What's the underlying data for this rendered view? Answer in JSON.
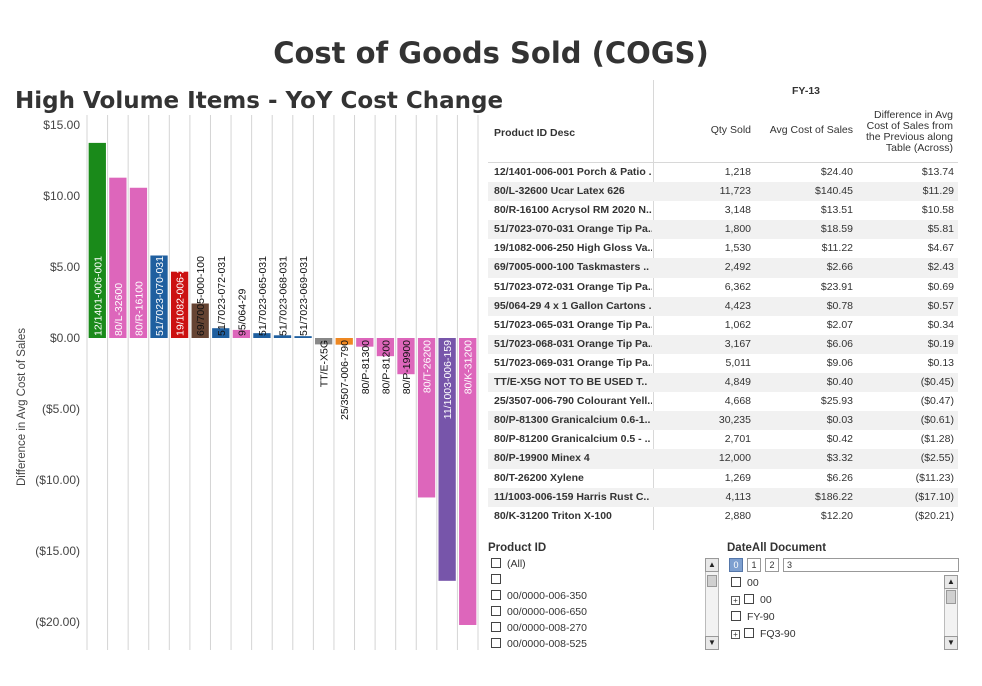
{
  "dashboard": {
    "title": "Cost of Goods Sold (COGS)",
    "subtitle": "High Volume Items - YoY Cost Change"
  },
  "chart_data": {
    "type": "bar",
    "ylabel": "Difference in Avg Cost of Sales",
    "ylim": [
      -21.5,
      15
    ],
    "yticks": [
      15,
      10,
      5,
      0,
      -5,
      -10,
      -15,
      -20
    ],
    "ytick_labels": [
      "$15.00",
      "$10.00",
      "$5.00",
      "$0.00",
      "($5.00)",
      "($10.00)",
      "($15.00)",
      "($20.00)"
    ],
    "grid": "vertical column separators",
    "categories": [
      "12/1401-006-001",
      "80/L-32600",
      "80/R-16100",
      "51/7023-070-031",
      "19/1082-006-250",
      "69/7005-000-100",
      "51/7023-072-031",
      "95/064-29",
      "51/7023-065-031",
      "51/7023-068-031",
      "51/7023-069-031",
      "TT/E-X5G",
      "25/3507-006-790",
      "80/P-81300",
      "80/P-81200",
      "80/P-19900",
      "80/T-26200",
      "11/1003-006-159",
      "80/K-31200"
    ],
    "values": [
      13.74,
      11.29,
      10.58,
      5.81,
      4.67,
      2.43,
      0.69,
      0.57,
      0.34,
      0.19,
      0.13,
      -0.45,
      -0.47,
      -0.61,
      -1.28,
      -2.55,
      -11.23,
      -17.1,
      -20.21
    ],
    "colors": [
      "#1a8a1a",
      "#dd66bb",
      "#dd66bb",
      "#1f5f9f",
      "#cc1111",
      "#664433",
      "#1f5f9f",
      "#dd66bb",
      "#1f5f9f",
      "#1f5f9f",
      "#1f5f9f",
      "#888888",
      "#ee8822",
      "#dd66bb",
      "#dd66bb",
      "#dd66bb",
      "#dd66bb",
      "#7755aa",
      "#dd66bb"
    ]
  },
  "table": {
    "header_group": "FY-13",
    "col_product": "Product ID Desc",
    "col_qty": "Qty Sold",
    "col_avg": "Avg Cost of Sales",
    "col_diff": "Difference in Avg Cost of Sales from the Previous along Table (Across)",
    "rows": [
      {
        "product": "12/1401-006-001  Porch & Patio ..",
        "qty": "1,218",
        "avg": "$24.40",
        "diff": "$13.74"
      },
      {
        "product": "80/L-32600  Ucar Latex 626",
        "qty": "11,723",
        "avg": "$140.45",
        "diff": "$11.29"
      },
      {
        "product": "80/R-16100  Acrysol RM 2020 N..",
        "qty": "3,148",
        "avg": "$13.51",
        "diff": "$10.58"
      },
      {
        "product": "51/7023-070-031  Orange Tip Pa..",
        "qty": "1,800",
        "avg": "$18.59",
        "diff": "$5.81"
      },
      {
        "product": "19/1082-006-250  High Gloss Va..",
        "qty": "1,530",
        "avg": "$11.22",
        "diff": "$4.67"
      },
      {
        "product": "69/7005-000-100  Taskmasters ..",
        "qty": "2,492",
        "avg": "$2.66",
        "diff": "$2.43"
      },
      {
        "product": "51/7023-072-031  Orange Tip Pa..",
        "qty": "6,362",
        "avg": "$23.91",
        "diff": "$0.69"
      },
      {
        "product": "95/064-29  4 x 1 Gallon Cartons ..",
        "qty": "4,423",
        "avg": "$0.78",
        "diff": "$0.57"
      },
      {
        "product": "51/7023-065-031  Orange Tip Pa..",
        "qty": "1,062",
        "avg": "$2.07",
        "diff": "$0.34"
      },
      {
        "product": "51/7023-068-031  Orange Tip Pa..",
        "qty": "3,167",
        "avg": "$6.06",
        "diff": "$0.19"
      },
      {
        "product": "51/7023-069-031  Orange Tip Pa..",
        "qty": "5,011",
        "avg": "$9.06",
        "diff": "$0.13"
      },
      {
        "product": "TT/E-X5G  NOT TO BE USED  T..",
        "qty": "4,849",
        "avg": "$0.40",
        "diff": "($0.45)"
      },
      {
        "product": "25/3507-006-790  Colourant Yell..",
        "qty": "4,668",
        "avg": "$25.93",
        "diff": "($0.47)"
      },
      {
        "product": "80/P-81300  Granicalcium 0.6-1..",
        "qty": "30,235",
        "avg": "$0.03",
        "diff": "($0.61)"
      },
      {
        "product": "80/P-81200  Granicalcium 0.5 - ..",
        "qty": "2,701",
        "avg": "$0.42",
        "diff": "($1.28)"
      },
      {
        "product": "80/P-19900  Minex 4",
        "qty": "12,000",
        "avg": "$3.32",
        "diff": "($2.55)"
      },
      {
        "product": "80/T-26200  Xylene",
        "qty": "1,269",
        "avg": "$6.26",
        "diff": "($11.23)"
      },
      {
        "product": "11/1003-006-159  Harris Rust C..",
        "qty": "4,113",
        "avg": "$186.22",
        "diff": "($17.10)"
      },
      {
        "product": "80/K-31200  Triton X-100",
        "qty": "2,880",
        "avg": "$12.20",
        "diff": "($20.21)"
      }
    ]
  },
  "product_filter": {
    "title": "Product ID",
    "items": [
      "(All)",
      "",
      "00/0000-006-350",
      "00/0000-006-650",
      "00/0000-008-270",
      "00/0000-008-525"
    ]
  },
  "date_filter": {
    "title": "DateAll Document",
    "levels": [
      "0",
      "1",
      "2",
      "3"
    ],
    "selected_level": "0",
    "items": [
      {
        "label": "00",
        "expander": ""
      },
      {
        "label": "00",
        "expander": "+"
      },
      {
        "label": "FY-90",
        "expander": ""
      },
      {
        "label": "FQ3-90",
        "expander": "+"
      }
    ]
  }
}
